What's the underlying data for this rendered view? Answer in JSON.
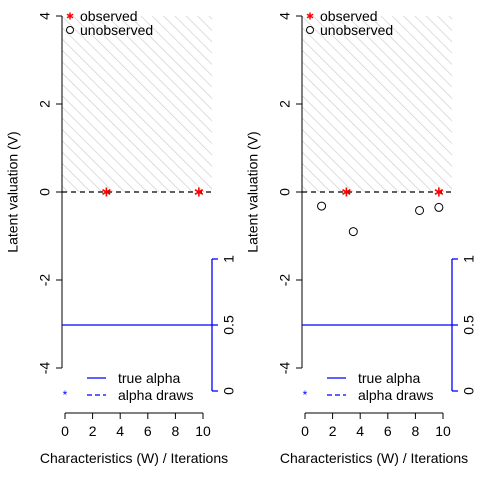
{
  "chart_data": [
    {
      "type": "scatter",
      "title": "",
      "xlabel": "Characteristics (W) / Iterations",
      "ylabel": "Latent valuation (V)",
      "xlim": [
        0,
        10
      ],
      "ylim": [
        -4,
        4
      ],
      "x_ticks": [
        "0",
        "2",
        "4",
        "6",
        "8",
        "10"
      ],
      "x_tick_values": [
        0,
        2,
        4,
        6,
        8,
        10
      ],
      "y_ticks": [
        "-4",
        "-2",
        "0",
        "2",
        "4"
      ],
      "y_tick_values": [
        -4,
        -2,
        0,
        2,
        4
      ],
      "right_axis": {
        "ylim": [
          0,
          1
        ],
        "ticks": [
          "0",
          "0.5",
          "1"
        ],
        "tick_values": [
          0,
          0.5,
          1
        ],
        "color": "#0000ff"
      },
      "shaded_region": {
        "y_from": 0,
        "y_to": 4,
        "pattern": "diagonal-hatch",
        "color": "#cccccc"
      },
      "threshold_line": {
        "y": 0,
        "style": "dashed",
        "color": "#000000"
      },
      "true_alpha_line": {
        "value": 0.5,
        "color": "#0000ff",
        "style": "solid"
      },
      "series": [
        {
          "name": "observed",
          "marker": "asterisk",
          "color": "#ff0000",
          "points": [
            {
              "x": 3,
              "y": 0
            },
            {
              "x": 9.7,
              "y": 0
            }
          ]
        },
        {
          "name": "unobserved",
          "marker": "open-circle",
          "color": "#000000",
          "points": []
        }
      ],
      "legend_top": [
        "observed",
        "unobserved"
      ],
      "legend_bottom": [
        {
          "label": "true alpha",
          "style": "solid",
          "color": "#0000ff"
        },
        {
          "label": "alpha draws",
          "style": "dashed",
          "color": "#0000ff"
        }
      ],
      "legend_bottom_mark": {
        "symbol": "*",
        "color": "#0000ff"
      },
      "grid": false
    },
    {
      "type": "scatter",
      "title": "",
      "xlabel": "Characteristics (W) / Iterations",
      "ylabel": "Latent valuation (V)",
      "xlim": [
        0,
        10
      ],
      "ylim": [
        -4,
        4
      ],
      "x_ticks": [
        "0",
        "2",
        "4",
        "6",
        "8",
        "10"
      ],
      "x_tick_values": [
        0,
        2,
        4,
        6,
        8,
        10
      ],
      "y_ticks": [
        "-4",
        "-2",
        "0",
        "2",
        "4"
      ],
      "y_tick_values": [
        -4,
        -2,
        0,
        2,
        4
      ],
      "right_axis": {
        "ylim": [
          0,
          1
        ],
        "ticks": [
          "0",
          "0.5",
          "1"
        ],
        "tick_values": [
          0,
          0.5,
          1
        ],
        "color": "#0000ff"
      },
      "shaded_region": {
        "y_from": 0,
        "y_to": 4,
        "pattern": "diagonal-hatch",
        "color": "#cccccc"
      },
      "threshold_line": {
        "y": 0,
        "style": "dashed",
        "color": "#000000"
      },
      "true_alpha_line": {
        "value": 0.5,
        "color": "#0000ff",
        "style": "solid"
      },
      "series": [
        {
          "name": "observed",
          "marker": "asterisk",
          "color": "#ff0000",
          "points": [
            {
              "x": 3,
              "y": 0
            },
            {
              "x": 9.7,
              "y": 0
            }
          ]
        },
        {
          "name": "unobserved",
          "marker": "open-circle",
          "color": "#000000",
          "points": [
            {
              "x": 1.2,
              "y": -0.32
            },
            {
              "x": 3.5,
              "y": -0.9
            },
            {
              "x": 8.3,
              "y": -0.42
            },
            {
              "x": 9.7,
              "y": -0.35
            }
          ]
        }
      ],
      "legend_top": [
        "observed",
        "unobserved"
      ],
      "legend_bottom": [
        {
          "label": "true alpha",
          "style": "solid",
          "color": "#0000ff"
        },
        {
          "label": "alpha draws",
          "style": "dashed",
          "color": "#0000ff"
        }
      ],
      "legend_bottom_mark": {
        "symbol": "*",
        "color": "#0000ff"
      },
      "grid": false
    }
  ]
}
